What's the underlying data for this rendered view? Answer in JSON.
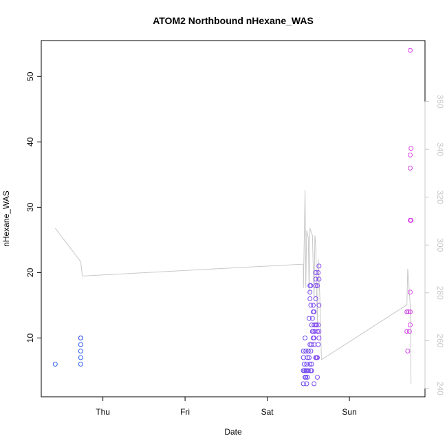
{
  "chart_data": {
    "type": "scatter",
    "title": "ATOM2 Northbound nHexane_WAS",
    "xlabel": "Date",
    "ylabel": "nHexane_WAS",
    "x_axis": {
      "type": "date",
      "ticks": [
        {
          "label": "Thu",
          "value": 1.0
        },
        {
          "label": "Fri",
          "value": 2.0
        },
        {
          "label": "Sat",
          "value": 3.0
        },
        {
          "label": "Sun",
          "value": 4.0
        }
      ],
      "xlim": [
        0.25,
        4.92
      ]
    },
    "y_axis": {
      "ticks": [
        10,
        20,
        30,
        40,
        50
      ],
      "ylim": [
        1,
        55.5
      ]
    },
    "y2_axis": {
      "ticks": [
        240,
        260,
        280,
        300,
        320,
        340,
        360
      ],
      "ylim": [
        236.5,
        385.5
      ],
      "color": "#c8c8c8"
    },
    "grid": false,
    "series": [
      {
        "marker": "open-circle",
        "axis": "left",
        "points": [
          {
            "x": 0.42,
            "y": 6,
            "color": "#2e5ff2"
          },
          {
            "x": 0.73,
            "y": 6,
            "color": "#2e5ff2"
          },
          {
            "x": 0.73,
            "y": 7,
            "color": "#2e5ff2"
          },
          {
            "x": 0.73,
            "y": 8,
            "color": "#2e5ff2"
          },
          {
            "x": 0.73,
            "y": 9,
            "color": "#2e5ff2"
          },
          {
            "x": 0.73,
            "y": 10,
            "color": "#2e5ff2"
          },
          {
            "x": 0.73,
            "y": 10,
            "color": "#3a56f2"
          },
          {
            "x": 3.44,
            "y": 3,
            "color": "#6a46f0"
          },
          {
            "x": 3.44,
            "y": 5,
            "color": "#6a46f0"
          },
          {
            "x": 3.44,
            "y": 7,
            "color": "#6a46f0"
          },
          {
            "x": 3.44,
            "y": 8,
            "color": "#6a46f0"
          },
          {
            "x": 3.45,
            "y": 5,
            "color": "#6a46f0"
          },
          {
            "x": 3.45,
            "y": 6,
            "color": "#6a46f0"
          },
          {
            "x": 3.46,
            "y": 4,
            "color": "#6a46f0"
          },
          {
            "x": 3.46,
            "y": 10,
            "color": "#6a46f0"
          },
          {
            "x": 3.47,
            "y": 4,
            "color": "#6a46f0"
          },
          {
            "x": 3.47,
            "y": 5,
            "color": "#6a46f0"
          },
          {
            "x": 3.47,
            "y": 8,
            "color": "#6a46f0"
          },
          {
            "x": 3.48,
            "y": 3,
            "color": "#7046f0"
          },
          {
            "x": 3.48,
            "y": 5,
            "color": "#7046f0"
          },
          {
            "x": 3.48,
            "y": 6,
            "color": "#7046f0"
          },
          {
            "x": 3.49,
            "y": 4,
            "color": "#7046f0"
          },
          {
            "x": 3.49,
            "y": 7,
            "color": "#7046f0"
          },
          {
            "x": 3.5,
            "y": 5,
            "color": "#7046f0"
          },
          {
            "x": 3.5,
            "y": 8,
            "color": "#7046f0"
          },
          {
            "x": 3.51,
            "y": 7,
            "color": "#7046f0"
          },
          {
            "x": 3.51,
            "y": 13,
            "color": "#7046f0"
          },
          {
            "x": 3.52,
            "y": 6,
            "color": "#7446f0"
          },
          {
            "x": 3.52,
            "y": 9,
            "color": "#7446f0"
          },
          {
            "x": 3.52,
            "y": 16,
            "color": "#7446f0"
          },
          {
            "x": 3.52,
            "y": 17,
            "color": "#7446f0"
          },
          {
            "x": 3.52,
            "y": 18,
            "color": "#7446f0"
          },
          {
            "x": 3.53,
            "y": 5,
            "color": "#7446f0"
          },
          {
            "x": 3.53,
            "y": 8,
            "color": "#7446f0"
          },
          {
            "x": 3.53,
            "y": 15,
            "color": "#7446f0"
          },
          {
            "x": 3.53,
            "y": 18,
            "color": "#7446f0"
          },
          {
            "x": 3.54,
            "y": 5,
            "color": "#7646f0"
          },
          {
            "x": 3.54,
            "y": 6,
            "color": "#7646f0"
          },
          {
            "x": 3.54,
            "y": 9,
            "color": "#7646f0"
          },
          {
            "x": 3.54,
            "y": 12,
            "color": "#7646f0"
          },
          {
            "x": 3.55,
            "y": 11,
            "color": "#7646f0"
          },
          {
            "x": 3.55,
            "y": 13,
            "color": "#7646f0"
          },
          {
            "x": 3.56,
            "y": 10,
            "color": "#7a46f0"
          },
          {
            "x": 3.56,
            "y": 11,
            "color": "#7a46f0"
          },
          {
            "x": 3.56,
            "y": 14,
            "color": "#7a46f0"
          },
          {
            "x": 3.56,
            "y": 15,
            "color": "#7a46f0"
          },
          {
            "x": 3.57,
            "y": 3,
            "color": "#7a46f0"
          },
          {
            "x": 3.57,
            "y": 9,
            "color": "#7a46f0"
          },
          {
            "x": 3.57,
            "y": 10,
            "color": "#7a46f0"
          },
          {
            "x": 3.57,
            "y": 12,
            "color": "#7a46f0"
          },
          {
            "x": 3.57,
            "y": 14,
            "color": "#7a46f0"
          },
          {
            "x": 3.58,
            "y": 11,
            "color": "#7e46f0"
          },
          {
            "x": 3.59,
            "y": 7,
            "color": "#7e46f0"
          },
          {
            "x": 3.59,
            "y": 12,
            "color": "#7e46f0"
          },
          {
            "x": 3.59,
            "y": 16,
            "color": "#7e46f0"
          },
          {
            "x": 3.59,
            "y": 18,
            "color": "#7e46f0"
          },
          {
            "x": 3.59,
            "y": 19,
            "color": "#7e46f0"
          },
          {
            "x": 3.59,
            "y": 20,
            "color": "#7e46f0"
          },
          {
            "x": 3.6,
            "y": 7,
            "color": "#8246f0"
          },
          {
            "x": 3.6,
            "y": 12,
            "color": "#8246f0"
          },
          {
            "x": 3.61,
            "y": 4,
            "color": "#8246f0"
          },
          {
            "x": 3.61,
            "y": 7,
            "color": "#8246f0"
          },
          {
            "x": 3.61,
            "y": 11,
            "color": "#8246f0"
          },
          {
            "x": 3.61,
            "y": 18,
            "color": "#8246f0"
          },
          {
            "x": 3.62,
            "y": 9,
            "color": "#8646f0"
          },
          {
            "x": 3.62,
            "y": 12,
            "color": "#8646f0"
          },
          {
            "x": 3.62,
            "y": 20,
            "color": "#8646f0"
          },
          {
            "x": 3.63,
            "y": 10,
            "color": "#8646f0"
          },
          {
            "x": 3.63,
            "y": 11,
            "color": "#8646f0"
          },
          {
            "x": 3.63,
            "y": 15,
            "color": "#8646f0"
          },
          {
            "x": 3.63,
            "y": 19,
            "color": "#8646f0"
          },
          {
            "x": 3.63,
            "y": 21,
            "color": "#8646f0"
          },
          {
            "x": 4.7,
            "y": 11,
            "color": "#d040e8"
          },
          {
            "x": 4.7,
            "y": 14,
            "color": "#d040e8"
          },
          {
            "x": 4.71,
            "y": 8,
            "color": "#d040e8"
          },
          {
            "x": 4.72,
            "y": 14,
            "color": "#d040e8"
          },
          {
            "x": 4.73,
            "y": 11,
            "color": "#d840e8"
          },
          {
            "x": 4.74,
            "y": 12,
            "color": "#d840e8"
          },
          {
            "x": 4.74,
            "y": 14,
            "color": "#d840e8"
          },
          {
            "x": 4.74,
            "y": 17,
            "color": "#d840e8"
          },
          {
            "x": 4.74,
            "y": 28,
            "color": "#d840e8"
          },
          {
            "x": 4.74,
            "y": 36,
            "color": "#d840e8"
          },
          {
            "x": 4.74,
            "y": 38,
            "color": "#d840e8"
          },
          {
            "x": 4.75,
            "y": 28,
            "color": "#dc40e8"
          },
          {
            "x": 4.75,
            "y": 39,
            "color": "#dc40e8"
          },
          {
            "x": 4.74,
            "y": 54,
            "color": "#dc40e8"
          }
        ]
      },
      {
        "marker": "line",
        "axis": "right",
        "color": "#c8c8c8",
        "points": [
          {
            "x": 0.42,
            "y": 307
          },
          {
            "x": 0.73,
            "y": 293
          },
          {
            "x": 0.75,
            "y": 287
          },
          {
            "x": 3.44,
            "y": 292
          },
          {
            "x": 3.44,
            "y": 282
          },
          {
            "x": 3.46,
            "y": 323
          },
          {
            "x": 3.47,
            "y": 282
          },
          {
            "x": 3.48,
            "y": 306
          },
          {
            "x": 3.5,
            "y": 303
          },
          {
            "x": 3.51,
            "y": 280
          },
          {
            "x": 3.52,
            "y": 307
          },
          {
            "x": 3.55,
            "y": 304
          },
          {
            "x": 3.57,
            "y": 277
          },
          {
            "x": 3.58,
            "y": 304
          },
          {
            "x": 3.59,
            "y": 300
          },
          {
            "x": 3.61,
            "y": 266
          },
          {
            "x": 3.62,
            "y": 294
          },
          {
            "x": 3.64,
            "y": 278
          },
          {
            "x": 3.66,
            "y": 252
          },
          {
            "x": 4.7,
            "y": 275
          },
          {
            "x": 4.71,
            "y": 290
          },
          {
            "x": 4.74,
            "y": 275
          },
          {
            "x": 4.75,
            "y": 242
          }
        ]
      }
    ]
  }
}
